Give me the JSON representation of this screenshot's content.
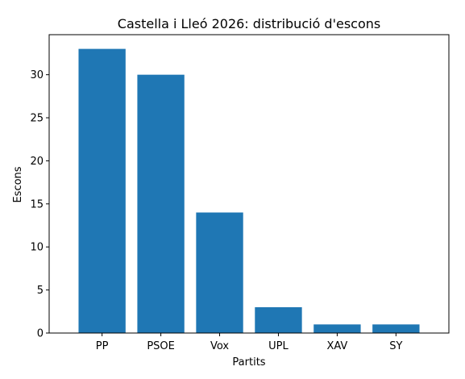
{
  "chart_data": {
    "type": "bar",
    "title": "Castella i Lleó 2026: distribució d'escons",
    "xlabel": "Partits",
    "ylabel": "Escons",
    "categories": [
      "PP",
      "PSOE",
      "Vox",
      "UPL",
      "XAV",
      "SY"
    ],
    "values": [
      33,
      30,
      14,
      3,
      1,
      1
    ],
    "ylim": [
      0,
      34.65
    ],
    "yticks": [
      0,
      5,
      10,
      15,
      20,
      25,
      30
    ],
    "grid": false,
    "legend": "none",
    "bar_color": "#1f77b4"
  }
}
